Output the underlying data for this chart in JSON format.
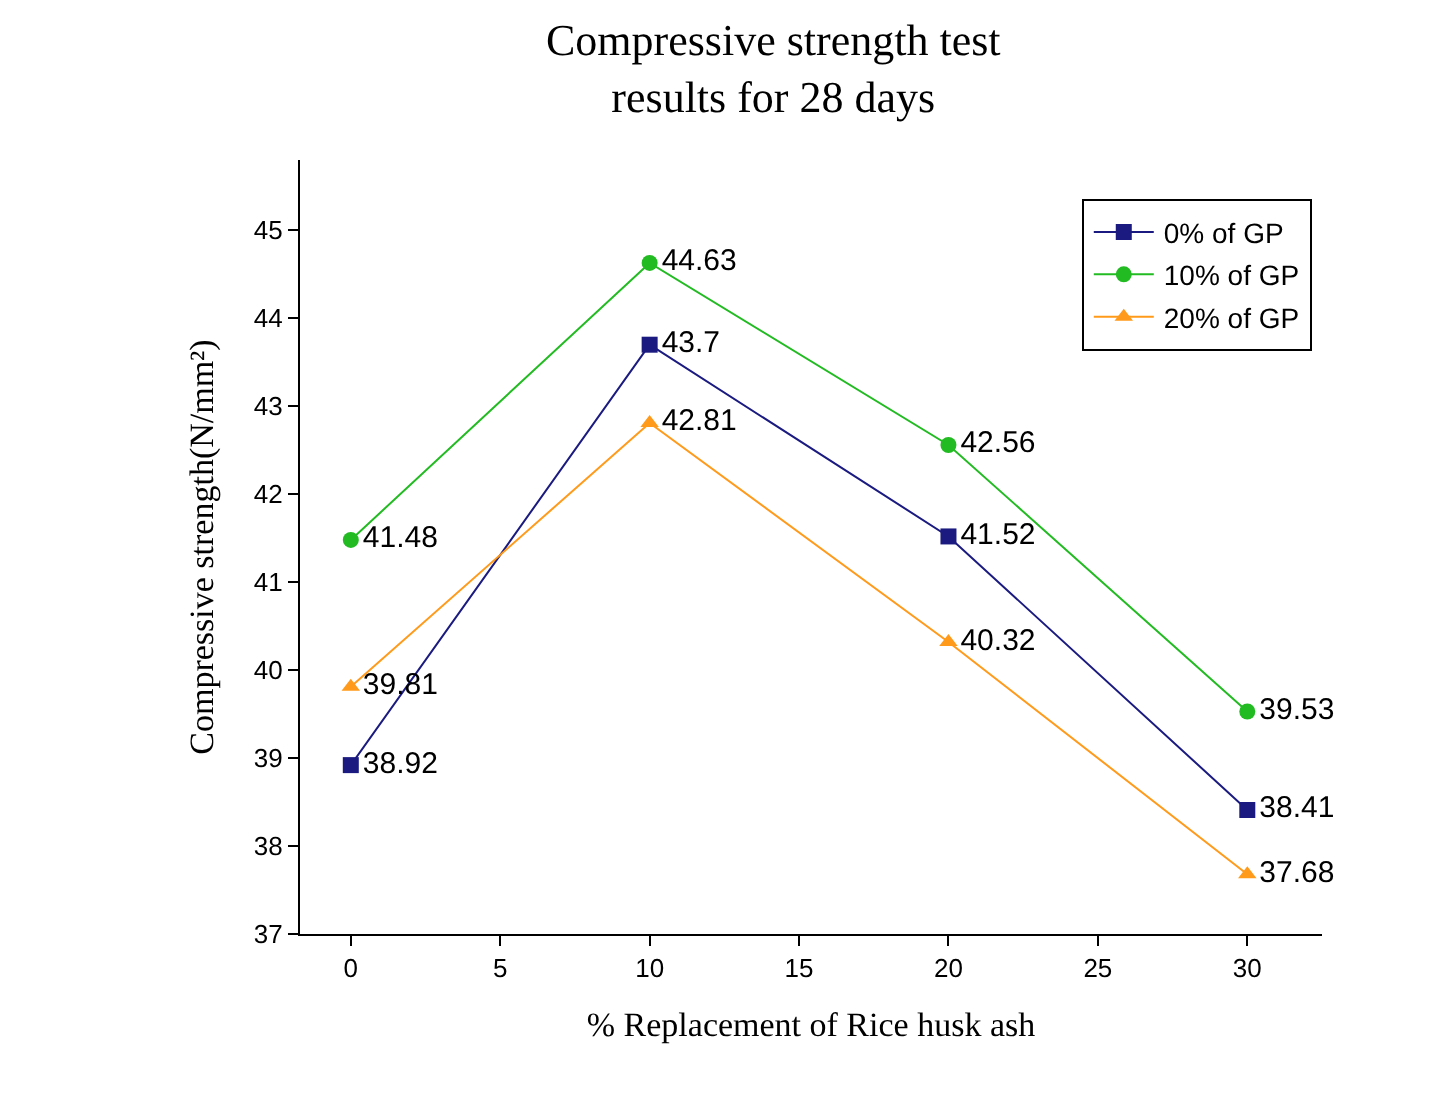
{
  "chart_data": {
    "type": "line",
    "title": "Compressive strength test\nresults for 28 days",
    "xlabel": "% Replacement of Rice husk ash",
    "ylabel": "Compressive strength(N/mm²)",
    "x": [
      0,
      10,
      20,
      30
    ],
    "series": [
      {
        "name": "0% of GP",
        "color": "#1a1a80",
        "marker": "square",
        "values": [
          38.92,
          43.7,
          41.52,
          38.41
        ]
      },
      {
        "name": "10% of GP",
        "color": "#22bb22",
        "marker": "circle",
        "values": [
          41.48,
          44.63,
          42.56,
          39.53
        ]
      },
      {
        "name": "20% of GP",
        "color": "#ff9a1a",
        "marker": "triangle",
        "values": [
          39.81,
          42.81,
          40.32,
          37.68
        ]
      }
    ],
    "xlim": [
      -1.7,
      32.5
    ],
    "xticks": [
      0,
      5,
      10,
      15,
      20,
      25,
      30
    ],
    "ylim": [
      37,
      45.8
    ],
    "yticks": [
      37,
      38,
      39,
      40,
      41,
      42,
      43,
      44,
      45
    ],
    "data_labels": true,
    "legend": "top right",
    "line_style": "solid"
  }
}
